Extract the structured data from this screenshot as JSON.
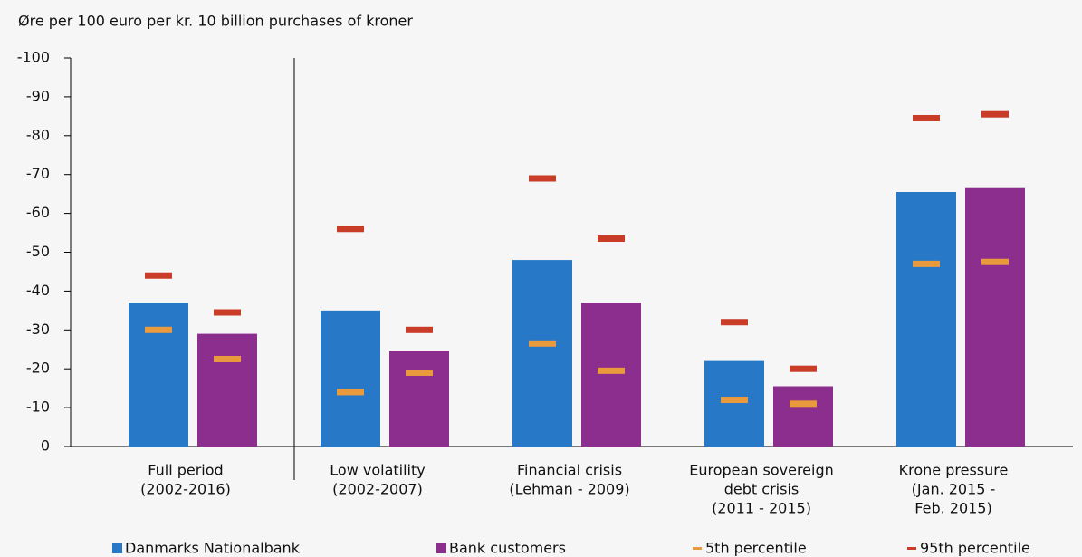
{
  "chart_data": {
    "type": "bar",
    "title": "Øre per 100 euro per kr. 10 billion purchases of kroner",
    "categories": [
      [
        "Full period",
        "(2002-2016)"
      ],
      [
        "Low volatility",
        "(2002-2007)"
      ],
      [
        "Financial crisis",
        "(Lehman  -  2009)"
      ],
      [
        "European sovereign",
        "debt crisis",
        "(2011 - 2015)"
      ],
      [
        "Krone pressure",
        "(Jan. 2015 -",
        "Feb. 2015)"
      ]
    ],
    "series": [
      {
        "name": "Danmarks Nationalbank",
        "color": "#2878c8",
        "values": [
          -37,
          -35,
          -48,
          -22,
          -65.5
        ]
      },
      {
        "name": "Bank customers",
        "color": "#8b2e8e",
        "values": [
          -29,
          -24.5,
          -37,
          -15.5,
          -66.5
        ]
      },
      {
        "name": "5th percentile",
        "color": "#e89a3c",
        "values": [
          [
            -30,
            -22.5
          ],
          [
            -14,
            -19
          ],
          [
            -26.5,
            -19.5
          ],
          [
            -12,
            -11
          ],
          [
            -47,
            -47.5
          ]
        ]
      },
      {
        "name": "95th percentile",
        "color": "#c83c28",
        "values": [
          [
            -44,
            -34.5
          ],
          [
            -56,
            -30
          ],
          [
            -69,
            -53.5
          ],
          [
            -32,
            -20
          ],
          [
            -84.5,
            -85.5
          ]
        ]
      }
    ],
    "ylim": [
      0,
      -100
    ],
    "yticks": [
      0,
      -10,
      -20,
      -30,
      -40,
      -50,
      -60,
      -70,
      -80,
      -90,
      -100
    ]
  }
}
